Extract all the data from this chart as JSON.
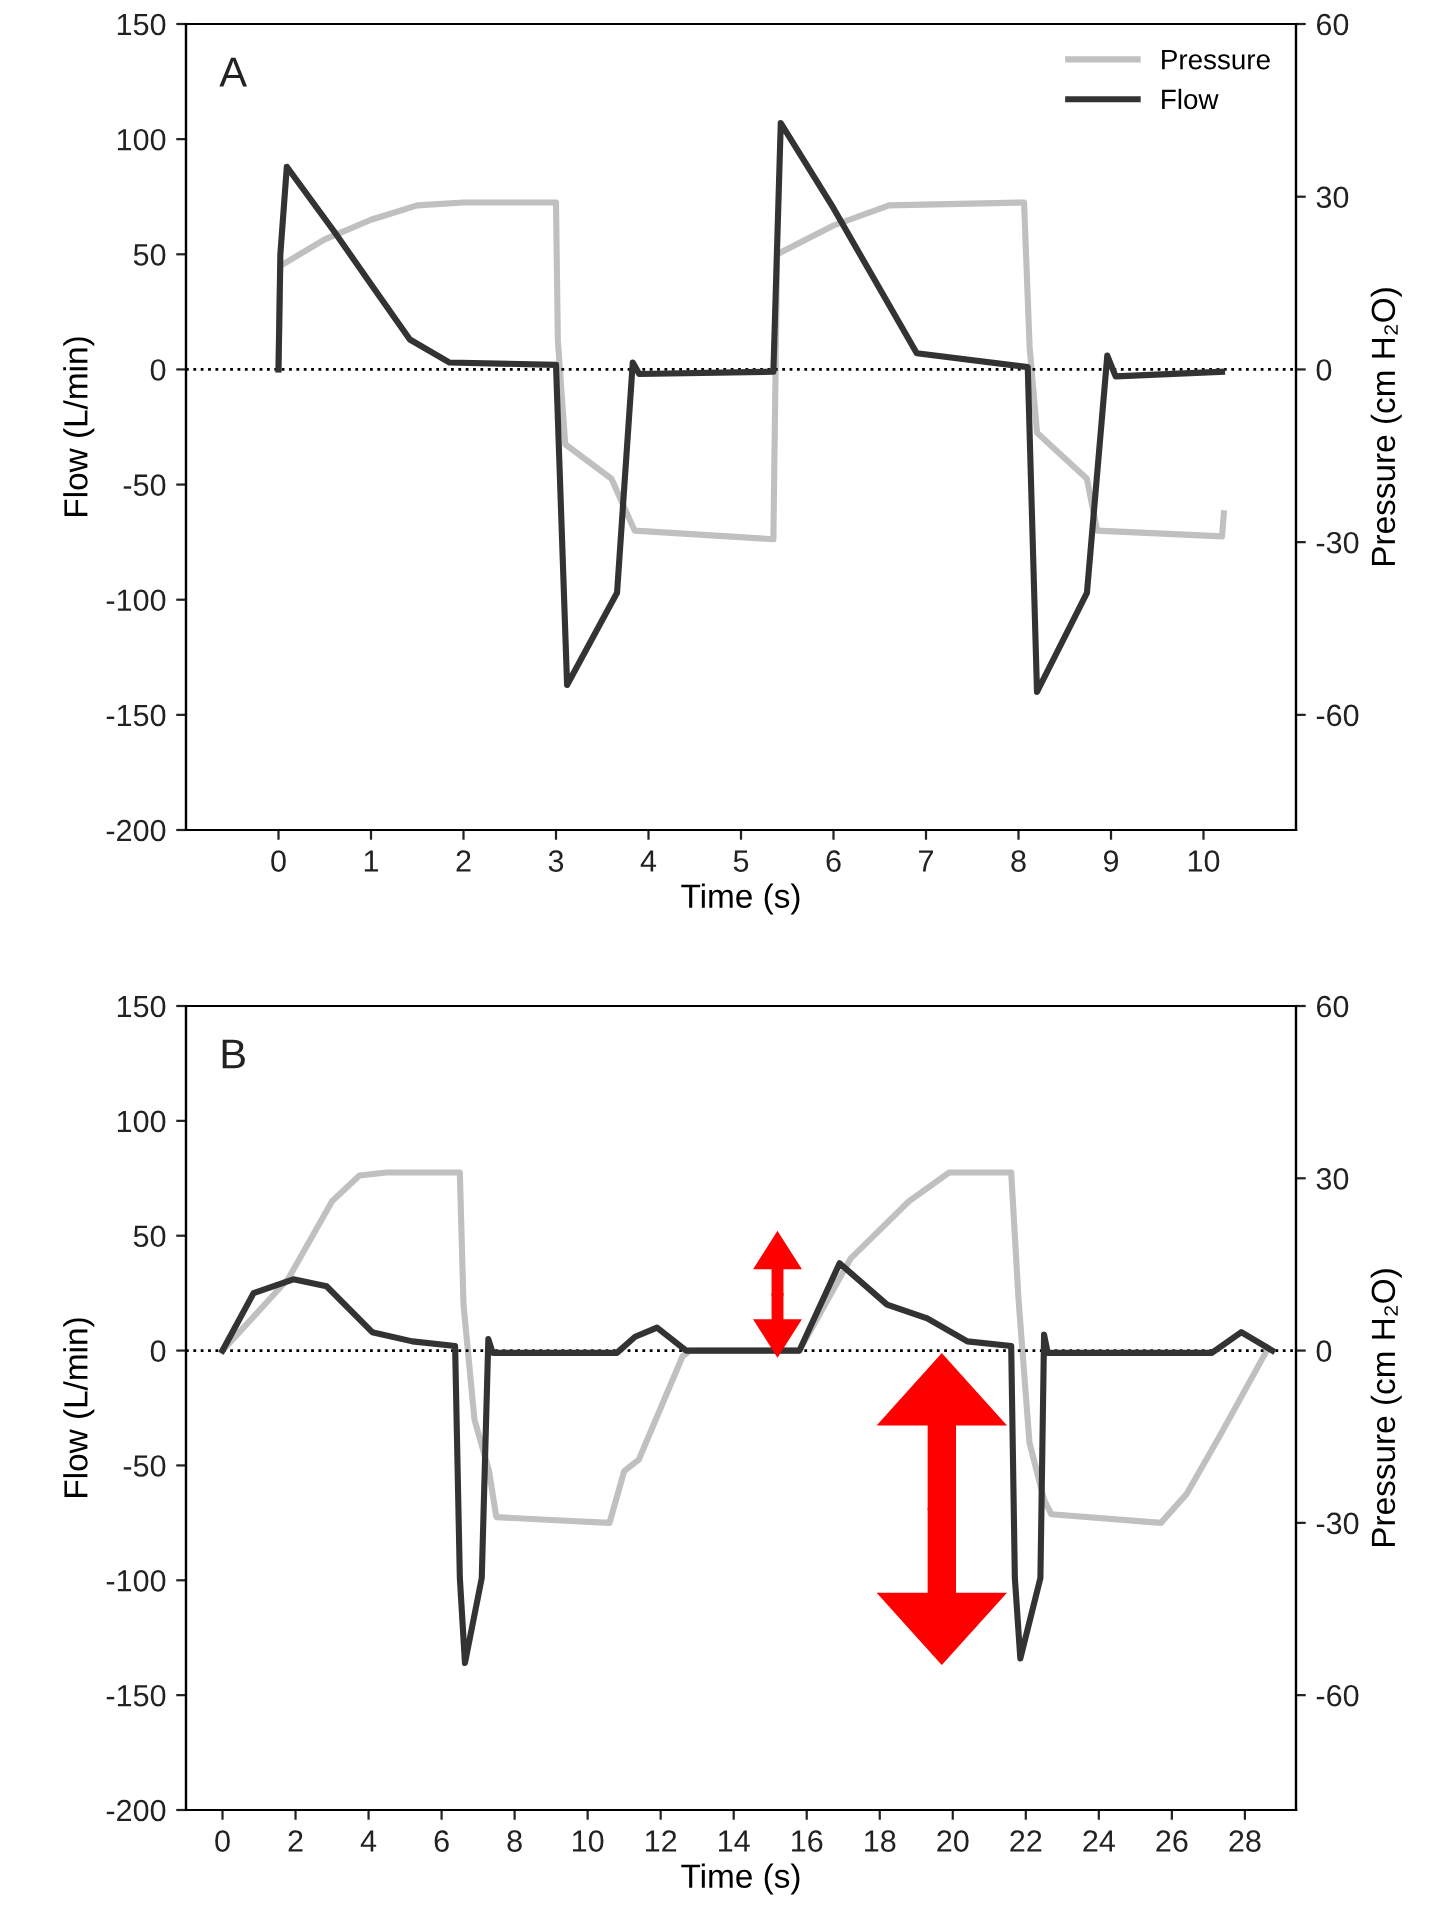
{
  "chart_data": [
    {
      "type": "line",
      "title": "A",
      "xlabel": "Time (s)",
      "ylabel": "Flow (L/min)",
      "y2label": "Pressure (cm H₂O)",
      "xlim": [
        -1,
        11
      ],
      "xticks": [
        0,
        1,
        2,
        3,
        4,
        5,
        6,
        7,
        8,
        9,
        10
      ],
      "ylim": [
        -200,
        150
      ],
      "yticks": [
        -200,
        -150,
        -100,
        -50,
        0,
        50,
        100,
        150
      ],
      "y2lim": [
        -80,
        60
      ],
      "y2ticks": [
        -60,
        -30,
        0,
        30,
        60
      ],
      "grid": false,
      "legend": "top right",
      "marker": "none",
      "line_style": "solid",
      "ref_lines": [
        {
          "axis": "y",
          "value": 0,
          "color": "#000000",
          "line_style": "dotted"
        }
      ],
      "series": [
        {
          "name": "Pressure",
          "color": "#c0c0c0",
          "axis": "y2",
          "x": [
            0,
            0.02,
            0.5,
            1,
            1.5,
            2,
            3,
            3.02,
            3.1,
            3.6,
            3.85,
            5.35,
            5.39,
            6.0,
            6.6,
            8.06,
            8.12,
            8.2,
            8.74,
            8.85,
            10.2,
            10.22
          ],
          "values": [
            0,
            18,
            22.6,
            26,
            28.5,
            29,
            29,
            5,
            -13,
            -19,
            -28,
            -29.5,
            20,
            25,
            28.5,
            29,
            4,
            -11,
            -19,
            -28,
            -29,
            -25
          ]
        },
        {
          "name": "Flow",
          "color": "#333333",
          "x": [
            0,
            0.02,
            0.09,
            0.6,
            1.0,
            1.42,
            1.85,
            3.0,
            3.12,
            3.66,
            3.83,
            3.9,
            5.35,
            5.43,
            6.0,
            6.5,
            6.9,
            8.1,
            8.2,
            8.74,
            8.96,
            9.05,
            10.2
          ],
          "values": [
            0,
            50,
            88,
            60,
            37,
            13,
            3,
            2,
            -137,
            -97,
            3,
            -2,
            -1,
            107,
            70,
            35,
            7,
            1,
            -140,
            -97,
            6,
            -3,
            -1
          ]
        }
      ]
    },
    {
      "type": "line",
      "title": "B",
      "xlabel": "Time (s)",
      "ylabel": "Flow (L/min)",
      "y2label": "Pressure (cm H₂O)",
      "xlim": [
        -1,
        29.4
      ],
      "xticks": [
        0,
        2,
        4,
        6,
        8,
        10,
        12,
        14,
        16,
        18,
        20,
        22,
        24,
        26,
        28
      ],
      "ylim": [
        -200,
        150
      ],
      "yticks": [
        -200,
        -150,
        -100,
        -50,
        0,
        50,
        100,
        150
      ],
      "y2lim": [
        -80,
        60
      ],
      "y2ticks": [
        -60,
        -30,
        0,
        30,
        60
      ],
      "grid": false,
      "legend": false,
      "marker": "none",
      "line_style": "solid",
      "ref_lines": [
        {
          "axis": "y",
          "value": 0,
          "color": "#000000",
          "line_style": "dotted"
        }
      ],
      "series": [
        {
          "color": "#c0c0c0",
          "axis": "y2",
          "x": [
            0,
            1.8,
            3.0,
            3.75,
            4.5,
            6.5,
            6.6,
            6.9,
            7.3,
            7.5,
            9.0,
            10.6,
            11.0,
            11.4,
            12.6,
            12.8,
            15.8,
            17.2,
            18.8,
            19.9,
            21.6,
            21.8,
            22.1,
            22.5,
            22.7,
            25.7,
            26.4,
            27.3,
            28.6
          ],
          "values": [
            0,
            12.5,
            26,
            30.5,
            31,
            31,
            8,
            -12,
            -21,
            -29,
            -29.5,
            -30,
            -21,
            -19,
            -1,
            0,
            0,
            16,
            26,
            31,
            31,
            9,
            -16,
            -26,
            -28.5,
            -30,
            -25,
            -15,
            0
          ]
        },
        {
          "color": "#333333",
          "x": [
            0,
            0.85,
            1.94,
            2.85,
            4.1,
            5.2,
            6.37,
            6.5,
            6.64,
            7.1,
            7.28,
            7.4,
            10.8,
            11.3,
            11.9,
            12.7,
            15.8,
            16.9,
            18.2,
            19.3,
            20.4,
            21.6,
            21.7,
            21.85,
            22.4,
            22.5,
            22.6,
            27.1,
            27.9,
            28.75
          ],
          "values": [
            0,
            25,
            31,
            28,
            8,
            4,
            2,
            -99,
            -136,
            -99,
            5,
            -1,
            -1,
            6,
            10,
            0,
            0,
            38,
            20,
            14,
            4,
            2,
            -99,
            -134,
            -99,
            7,
            -1,
            -1,
            8,
            0
          ]
        }
      ]
    }
  ]
}
